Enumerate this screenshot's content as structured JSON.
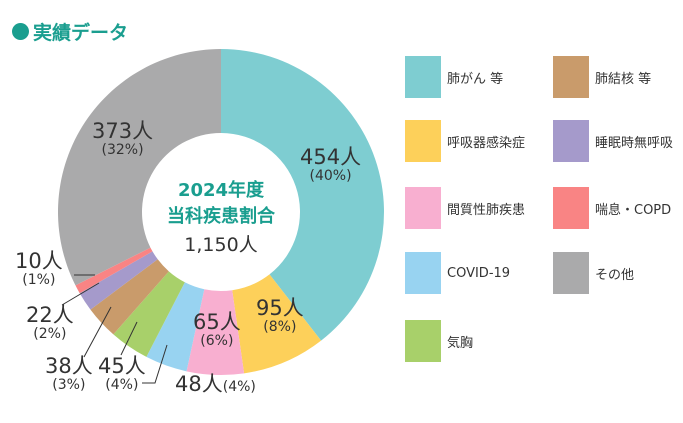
{
  "title": "実績データ",
  "chart_data": {
    "type": "pie",
    "title": "実績データ",
    "center": {
      "year": "2024年度",
      "subtitle": "当科疾患割合",
      "total": "1,150人"
    },
    "series": [
      {
        "name": "肺がん 等",
        "value": 454,
        "label": "454人",
        "percent": "(40%)",
        "color": "#7ecdd1"
      },
      {
        "name": "呼吸器感染症",
        "value": 95,
        "label": "95人",
        "percent": "(8%)",
        "color": "#fdd05a"
      },
      {
        "name": "間質性肺疾患",
        "value": 65,
        "label": "65人",
        "percent": "(6%)",
        "color": "#f8afd0"
      },
      {
        "name": "COVID-19",
        "value": 48,
        "label": "48人",
        "percent": "(4%)",
        "color": "#98d3f1"
      },
      {
        "name": "気胸",
        "value": 45,
        "label": "45人",
        "percent": "(4%)",
        "color": "#a8d06a"
      },
      {
        "name": "肺結核 等",
        "value": 38,
        "label": "38人",
        "percent": "(3%)",
        "color": "#c99b6b"
      },
      {
        "name": "睡眠時無呼吸",
        "value": 22,
        "label": "22人",
        "percent": "(2%)",
        "color": "#a59acb"
      },
      {
        "name": "喘息・COPD",
        "value": 10,
        "label": "10人",
        "percent": "(1%)",
        "color": "#f98484"
      },
      {
        "name": "その他",
        "value": 373,
        "label": "373人",
        "percent": "(32%)",
        "color": "#aaaaab"
      }
    ]
  }
}
